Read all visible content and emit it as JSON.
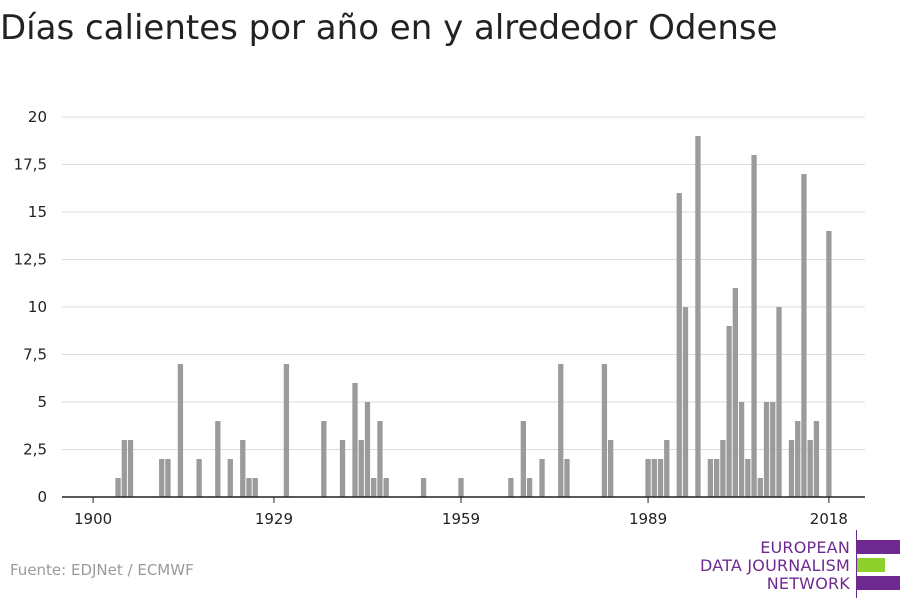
{
  "title": "Días calientes por año en y alrededor Odense",
  "source": "Fuente: EDJNet / ECMWF",
  "logo": {
    "lines": [
      "EUROPEAN",
      "DATA JOURNALISM",
      "NETWORK"
    ],
    "colors": {
      "purple": "#6e2a91",
      "green": "#8fd12c"
    }
  },
  "colors": {
    "bar": "#9b9b9b",
    "grid": "#dddddd",
    "axis": "#222222"
  },
  "chart_data": {
    "type": "bar",
    "title": "Días calientes por año en y alrededor Odense",
    "xlabel": "",
    "ylabel": "",
    "ylim": [
      0,
      20
    ],
    "yticks": [
      0,
      2.5,
      5,
      7.5,
      10,
      12.5,
      15,
      17.5,
      20
    ],
    "ytick_labels": [
      "0",
      "2,5",
      "5",
      "7,5",
      "10",
      "12,5",
      "15",
      "17,5",
      "20"
    ],
    "xticks": [
      1900,
      1929,
      1959,
      1989,
      2018
    ],
    "xtick_labels": [
      "1900",
      "1929",
      "1959",
      "1989",
      "2018"
    ],
    "grid": true,
    "x": [
      1900,
      1901,
      1902,
      1903,
      1904,
      1905,
      1906,
      1907,
      1908,
      1909,
      1910,
      1911,
      1912,
      1913,
      1914,
      1915,
      1916,
      1917,
      1918,
      1919,
      1920,
      1921,
      1922,
      1923,
      1924,
      1925,
      1926,
      1927,
      1928,
      1929,
      1930,
      1931,
      1932,
      1933,
      1934,
      1935,
      1936,
      1937,
      1938,
      1939,
      1940,
      1941,
      1942,
      1943,
      1944,
      1945,
      1946,
      1947,
      1948,
      1949,
      1950,
      1951,
      1952,
      1953,
      1954,
      1955,
      1956,
      1957,
      1958,
      1959,
      1960,
      1961,
      1962,
      1963,
      1964,
      1965,
      1966,
      1967,
      1968,
      1969,
      1970,
      1971,
      1972,
      1973,
      1974,
      1975,
      1976,
      1977,
      1978,
      1979,
      1980,
      1981,
      1982,
      1983,
      1984,
      1985,
      1986,
      1987,
      1988,
      1989,
      1990,
      1991,
      1992,
      1993,
      1994,
      1995,
      1996,
      1997,
      1998,
      1999,
      2000,
      2001,
      2002,
      2003,
      2004,
      2005,
      2006,
      2007,
      2008,
      2009,
      2010,
      2011,
      2012,
      2013,
      2014,
      2015,
      2016,
      2017,
      2018
    ],
    "values": [
      0,
      0,
      0,
      0,
      1,
      3,
      3,
      0,
      0,
      0,
      0,
      2,
      2,
      0,
      7,
      0,
      0,
      2,
      0,
      0,
      4,
      0,
      2,
      0,
      3,
      1,
      1,
      0,
      0,
      0,
      0,
      7,
      0,
      0,
      0,
      0,
      0,
      4,
      0,
      0,
      3,
      0,
      6,
      3,
      5,
      1,
      4,
      1,
      0,
      0,
      0,
      0,
      0,
      1,
      0,
      0,
      0,
      0,
      0,
      1,
      0,
      0,
      0,
      0,
      0,
      0,
      0,
      1,
      0,
      4,
      1,
      0,
      2,
      0,
      0,
      7,
      2,
      0,
      0,
      0,
      0,
      0,
      7,
      3,
      0,
      0,
      0,
      0,
      0,
      2,
      2,
      2,
      3,
      0,
      16,
      10,
      0,
      19,
      0,
      2,
      2,
      3,
      9,
      11,
      5,
      2,
      18,
      1,
      5,
      5,
      10,
      0,
      3,
      4,
      17,
      3,
      4,
      0,
      14
    ]
  }
}
